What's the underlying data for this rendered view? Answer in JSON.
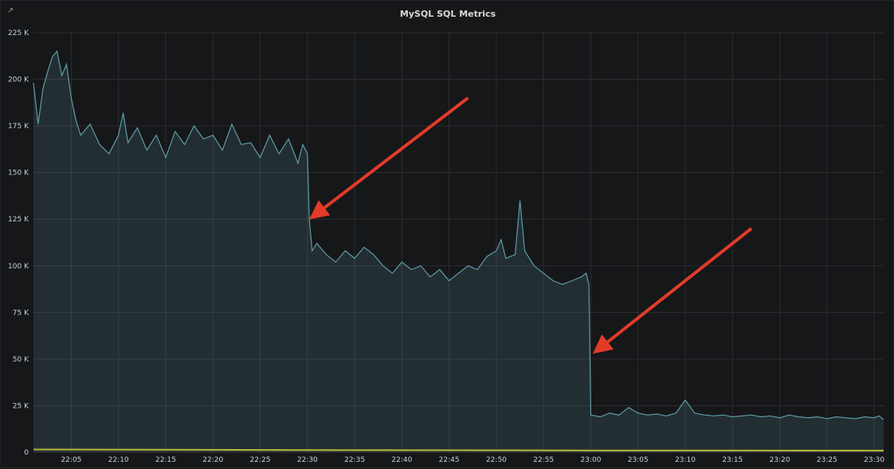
{
  "panel": {
    "title": "MySQL SQL Metrics",
    "share_icon": "external-link-icon"
  },
  "chart_data": {
    "type": "area",
    "title": "MySQL SQL Metrics",
    "xlabel": "",
    "ylabel": "",
    "x_ticks": [
      "22:05",
      "22:10",
      "22:15",
      "22:20",
      "22:25",
      "22:30",
      "22:35",
      "22:40",
      "22:45",
      "22:50",
      "22:55",
      "23:00",
      "23:05",
      "23:10",
      "23:15",
      "23:20",
      "23:25",
      "23:30"
    ],
    "y_ticks": [
      "0",
      "25 K",
      "50 K",
      "75 K",
      "100 K",
      "125 K",
      "150 K",
      "175 K",
      "200 K",
      "225 K"
    ],
    "xlim": [
      "22:01",
      "23:31"
    ],
    "ylim": [
      0,
      225000
    ],
    "grid": true,
    "legend": "none",
    "colors": {
      "main_series": "#5d9ca6",
      "baseline_series": "#b8ba3b",
      "arrow": "#e23b2a"
    },
    "series": [
      {
        "color": "#5d9ca6",
        "points": [
          [
            "22:01",
            198000
          ],
          [
            "22:01.5",
            176000
          ],
          [
            "22:02",
            195000
          ],
          [
            "22:02.5",
            204000
          ],
          [
            "22:03",
            212000
          ],
          [
            "22:03.5",
            215000
          ],
          [
            "22:04",
            202000
          ],
          [
            "22:04.5",
            208000
          ],
          [
            "22:05",
            190000
          ],
          [
            "22:05.5",
            178000
          ],
          [
            "22:06",
            170000
          ],
          [
            "22:07",
            176000
          ],
          [
            "22:08",
            165000
          ],
          [
            "22:09",
            160000
          ],
          [
            "22:10",
            170000
          ],
          [
            "22:10.5",
            182000
          ],
          [
            "22:11",
            166000
          ],
          [
            "22:12",
            174000
          ],
          [
            "22:13",
            162000
          ],
          [
            "22:14",
            170000
          ],
          [
            "22:15",
            158000
          ],
          [
            "22:16",
            172000
          ],
          [
            "22:17",
            165000
          ],
          [
            "22:18",
            175000
          ],
          [
            "22:19",
            168000
          ],
          [
            "22:20",
            170000
          ],
          [
            "22:21",
            162000
          ],
          [
            "22:22",
            176000
          ],
          [
            "22:23",
            165000
          ],
          [
            "22:24",
            166000
          ],
          [
            "22:25",
            158000
          ],
          [
            "22:26",
            170000
          ],
          [
            "22:27",
            160000
          ],
          [
            "22:28",
            168000
          ],
          [
            "22:29",
            155000
          ],
          [
            "22:29.5",
            165000
          ],
          [
            "22:30",
            160000
          ],
          [
            "22:30.2",
            125000
          ],
          [
            "22:30.5",
            108000
          ],
          [
            "22:31",
            112000
          ],
          [
            "22:32",
            106000
          ],
          [
            "22:33",
            102000
          ],
          [
            "22:34",
            108000
          ],
          [
            "22:35",
            104000
          ],
          [
            "22:36",
            110000
          ],
          [
            "22:37",
            106000
          ],
          [
            "22:38",
            100000
          ],
          [
            "22:39",
            96000
          ],
          [
            "22:40",
            102000
          ],
          [
            "22:41",
            98000
          ],
          [
            "22:42",
            100000
          ],
          [
            "22:43",
            94000
          ],
          [
            "22:44",
            98000
          ],
          [
            "22:45",
            92000
          ],
          [
            "22:46",
            96000
          ],
          [
            "22:47",
            100000
          ],
          [
            "22:48",
            98000
          ],
          [
            "22:49",
            105000
          ],
          [
            "22:50",
            108000
          ],
          [
            "22:50.5",
            114000
          ],
          [
            "22:51",
            104000
          ],
          [
            "22:52",
            106000
          ],
          [
            "22:52.5",
            135000
          ],
          [
            "22:53",
            108000
          ],
          [
            "22:54",
            100000
          ],
          [
            "22:55",
            96000
          ],
          [
            "22:56",
            92000
          ],
          [
            "22:57",
            90000
          ],
          [
            "22:58",
            92000
          ],
          [
            "22:59",
            94000
          ],
          [
            "22:59.5",
            96000
          ],
          [
            "22:59.8",
            90000
          ],
          [
            "23:00",
            20000
          ],
          [
            "23:01",
            19000
          ],
          [
            "23:02",
            21000
          ],
          [
            "23:03",
            20000
          ],
          [
            "23:04",
            24000
          ],
          [
            "23:05",
            21000
          ],
          [
            "23:06",
            20000
          ],
          [
            "23:07",
            20500
          ],
          [
            "23:08",
            19500
          ],
          [
            "23:09",
            21000
          ],
          [
            "23:10",
            28000
          ],
          [
            "23:11",
            21000
          ],
          [
            "23:12",
            20000
          ],
          [
            "23:13",
            19500
          ],
          [
            "23:14",
            20000
          ],
          [
            "23:15",
            19000
          ],
          [
            "23:16",
            19500
          ],
          [
            "23:17",
            20000
          ],
          [
            "23:18",
            19000
          ],
          [
            "23:19",
            19500
          ],
          [
            "23:20",
            18500
          ],
          [
            "23:21",
            20000
          ],
          [
            "23:22",
            19000
          ],
          [
            "23:23",
            18500
          ],
          [
            "23:24",
            19000
          ],
          [
            "23:25",
            18000
          ],
          [
            "23:26",
            19000
          ],
          [
            "23:27",
            18500
          ],
          [
            "23:28",
            18000
          ],
          [
            "23:29",
            19000
          ],
          [
            "23:30",
            18500
          ],
          [
            "23:30.5",
            19500
          ],
          [
            "23:31",
            17500
          ]
        ]
      },
      {
        "color": "#b8ba3b",
        "points": [
          [
            "22:01",
            1500
          ],
          [
            "22:30",
            1200
          ],
          [
            "23:00",
            1000
          ],
          [
            "23:31",
            900
          ]
        ]
      }
    ],
    "annotations": [
      {
        "type": "arrow",
        "from": [
          "22:47",
          "190000"
        ],
        "to": [
          "22:31",
          "128000"
        ]
      },
      {
        "type": "arrow",
        "from": [
          "23:17",
          "120000"
        ],
        "to": [
          "23:01",
          "56000"
        ]
      }
    ]
  }
}
